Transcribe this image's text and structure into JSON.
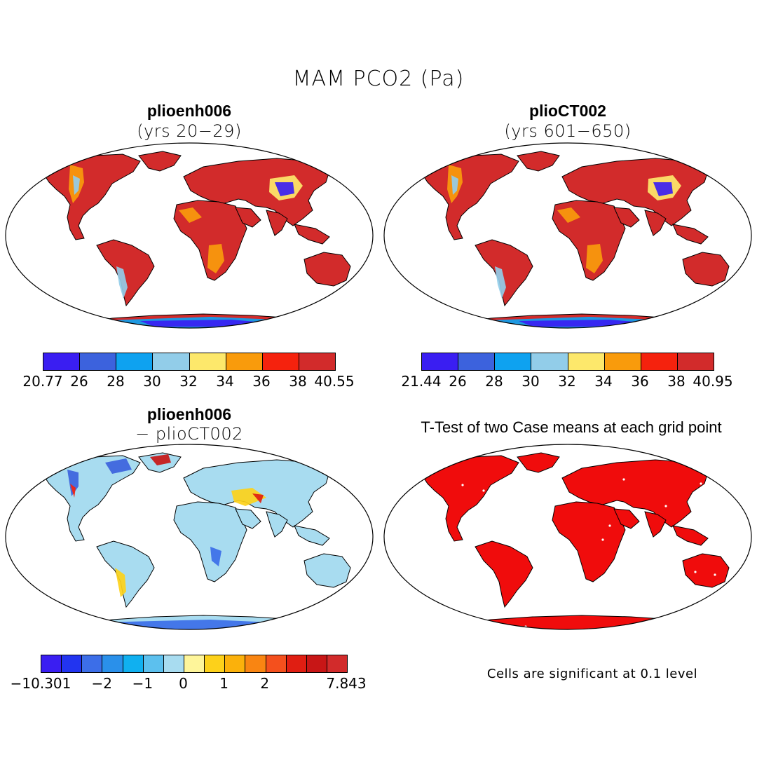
{
  "title": "MAM PCO2 (Pa)",
  "panels": {
    "top_left": {
      "title": "plioenh006",
      "subtitle": "(yrs 20−29)",
      "colorbar": {
        "colors": [
          "#3a1ef2",
          "#3c62dd",
          "#0ea2f0",
          "#92cde9",
          "#fde86b",
          "#f99b0c",
          "#f5220d",
          "#d22b2b"
        ],
        "labels": [
          "20.77",
          "26",
          "28",
          "30",
          "32",
          "34",
          "36",
          "38",
          "40.55"
        ]
      }
    },
    "top_right": {
      "title": "plioCT002",
      "subtitle": "(yrs 601−650)",
      "colorbar": {
        "colors": [
          "#3a1ef2",
          "#3c62dd",
          "#0ea2f0",
          "#92cde9",
          "#fde86b",
          "#f99b0c",
          "#f5220d",
          "#d22b2b"
        ],
        "labels": [
          "21.44",
          "26",
          "28",
          "30",
          "32",
          "34",
          "36",
          "38",
          "40.95"
        ]
      }
    },
    "bottom_left": {
      "title": "plioenh006",
      "subtitle": "− plioCT002",
      "colorbar": {
        "colors": [
          "#3a1ef2",
          "#2234f0",
          "#3c6ee8",
          "#2a90ea",
          "#10b0f0",
          "#5cc0ee",
          "#a8dcf0",
          "#fef59a",
          "#fdd11a",
          "#fbb10b",
          "#f98512",
          "#f4501d",
          "#e01e12",
          "#c81616",
          "#d22b2b"
        ],
        "labels": [
          "−10.301",
          "−2",
          "−1",
          "0",
          "1",
          "2",
          "7.843"
        ]
      }
    },
    "bottom_right": {
      "title": "T-Test of two Case means at each grid point",
      "note": "Cells are significant at 0.1 level"
    }
  },
  "colors": {
    "ocean": "#ffffff",
    "high": "#d22b2b",
    "mid": "#f55a1c",
    "orange": "#f99b0c",
    "yellow": "#fde86b",
    "lightblue": "#92cde9",
    "blue": "#0ea2f0",
    "deepblue": "#3a1ef2",
    "diffbase": "#a8dcf0",
    "ttest": "#f00c0c"
  }
}
